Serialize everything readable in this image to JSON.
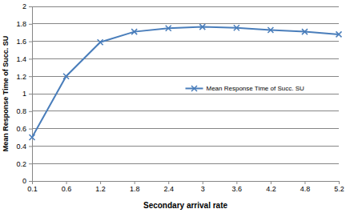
{
  "chart_data": {
    "type": "line",
    "x_label": "Secondary arrival rate",
    "y_label": "Mean Response Time of Succ. SU",
    "categories": [
      "0.1",
      "0.6",
      "1.2",
      "1.8",
      "2.4",
      "3",
      "3.6",
      "4.2",
      "4.8",
      "5.2"
    ],
    "series": [
      {
        "name": "Mean Response Time of Succ. SU",
        "color": "#4a7ebb",
        "marker": "x",
        "values": [
          0.5,
          1.2,
          1.59,
          1.71,
          1.75,
          1.765,
          1.755,
          1.73,
          1.71,
          1.68
        ]
      }
    ],
    "ylim": [
      0,
      2
    ],
    "yticks": [
      0,
      0.2,
      0.4,
      0.6,
      0.8,
      1,
      1.2,
      1.4,
      1.6,
      1.8,
      2
    ],
    "grid": true,
    "legend": "center"
  }
}
